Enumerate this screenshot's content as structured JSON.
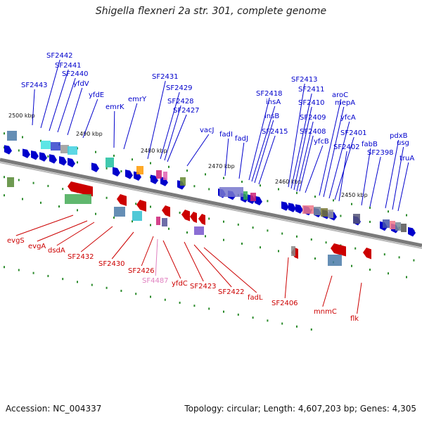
{
  "title": "Shigella flexneri 2a str. 301, complete genome",
  "accession": "Accession: NC_004337",
  "summary": "Topology: circular; Length: 4,607,203 bp; Genes: 4,305",
  "colors": {
    "forward": "#0000cc",
    "reverse": "#cc0000",
    "pseudo": "#e080c0",
    "backbone": "#7a7a7a",
    "tick": "#2a8a2a"
  },
  "kbp_marks": [
    "2500 kbp",
    "2490 kbp",
    "2480 kbp",
    "2470 kbp",
    "2460 kbp",
    "2450 kbp"
  ],
  "forward_labels": [
    "SF2443",
    "SF2442",
    "SF2441",
    "SF2440",
    "yfdV",
    "yfdE",
    "emrK",
    "emrY",
    "SF2431",
    "SF2429",
    "SF2428",
    "SF2427",
    "vacJ",
    "fadI",
    "fadJ",
    "SF2418",
    "insA",
    "insB",
    "SF2415",
    "SF2413",
    "SF2411",
    "SF2410",
    "SF2409",
    "SF2408",
    "yfcB",
    "aroC",
    "mepA",
    "yfcA",
    "SF2401",
    "SF2402",
    "fabB",
    "SF2398",
    "pdxB",
    "usg",
    "truA"
  ],
  "reverse_labels": [
    "evgS",
    "evgA",
    "dsdA",
    "SF2432",
    "SF2430",
    "SF2426",
    "SF4487",
    "yfdC",
    "SF2423",
    "SF2422",
    "fadL",
    "SF2406",
    "mnmC",
    "flk"
  ]
}
